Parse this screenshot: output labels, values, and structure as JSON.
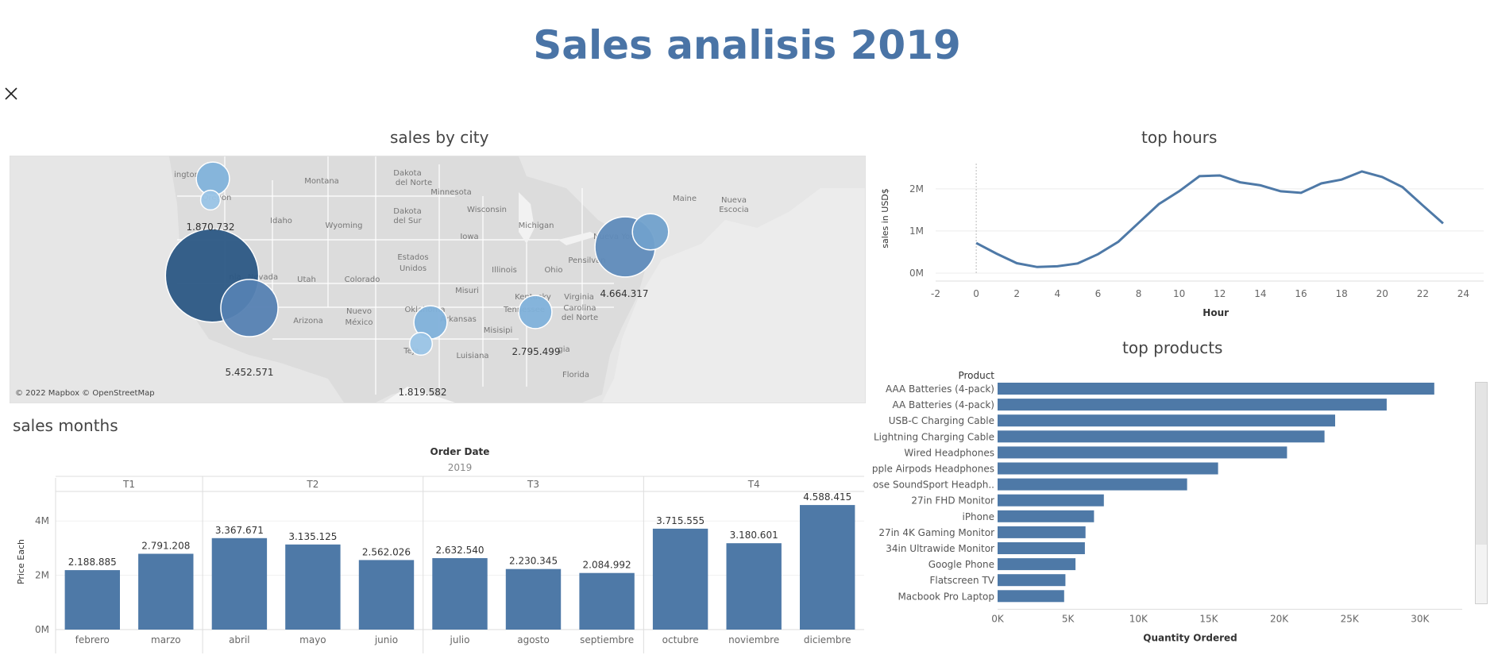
{
  "dashboard": {
    "title": "Sales analisis 2019",
    "close_icon": "close-icon",
    "colors": {
      "title": "#4a74a6",
      "bar": "#4e79a7",
      "line": "#4e79a7"
    }
  },
  "city_panel": {
    "title": "sales by city",
    "attribution": "© 2022 Mapbox © OpenStreetMap",
    "map_labels": [
      "ington",
      "Montana",
      "Dakota",
      "del Norte",
      "Minnesota",
      "Maine",
      "Nueva",
      "Escocia",
      "Idaho",
      "Wyoming",
      "Dakota",
      "del Sur",
      "Wisconsin",
      "Michigan",
      "Nueva York",
      "Iowa",
      "Estados",
      "Unidos",
      "Pensilvan",
      "Nevada",
      "Utah",
      "Colorado",
      "Illinois",
      "Ohio",
      "nia",
      "Misuri",
      "Kentucky",
      "Virginia",
      "Arizona",
      "Nuevo",
      "México",
      "Oklahoma",
      "Tennessee",
      "Carolina",
      "del Norte",
      "Arkansas",
      "Misisipi",
      "Teja",
      "Luisiana",
      "gia",
      "Florida",
      "Oregon"
    ],
    "city_labels": [
      "1.870.732",
      "4.664.317",
      "5.452.571",
      "2.795.499",
      "1.819.582"
    ],
    "cities": [
      {
        "id": "seattle",
        "size": 1.0
      },
      {
        "id": "portland",
        "size": 0.55
      },
      {
        "id": "sf",
        "size": 3.0
      },
      {
        "id": "la",
        "size": 1.8
      },
      {
        "id": "dallas",
        "size": 1.0
      },
      {
        "id": "austin",
        "size": 0.65
      },
      {
        "id": "atlanta",
        "size": 1.0
      },
      {
        "id": "nyc",
        "size": 1.9
      },
      {
        "id": "boston",
        "size": 1.1
      }
    ]
  },
  "hours_panel": {
    "title": "top hours"
  },
  "products_panel": {
    "title": "top products"
  },
  "months_panel": {
    "title": "sales months"
  },
  "chart_data": [
    {
      "type": "line",
      "title": "top hours",
      "xlabel": "Hour",
      "ylabel": "sales in USD$",
      "x": [
        0,
        1,
        2,
        3,
        4,
        5,
        6,
        7,
        8,
        9,
        10,
        11,
        12,
        13,
        14,
        15,
        16,
        17,
        18,
        19,
        20,
        21,
        22,
        23
      ],
      "y": [
        713721,
        460866,
        234851,
        145757,
        162661,
        230679,
        448113,
        744854,
        1192348,
        1639030,
        1944287,
        2300610,
        2316821,
        2155390,
        2083672,
        1941549,
        1904601,
        2129362,
        2219348,
        2412939,
        2281716,
        2042001,
        1607549,
        1179305
      ],
      "xlim": [
        -2,
        25
      ],
      "ylim": [
        0,
        2600000
      ],
      "xticks": [
        "-2",
        "0",
        "2",
        "4",
        "6",
        "8",
        "10",
        "12",
        "14",
        "16",
        "18",
        "20",
        "22",
        "24"
      ],
      "yticks": [
        "0M",
        "1M",
        "2M"
      ],
      "grid": true
    },
    {
      "type": "bar",
      "orientation": "horizontal",
      "title": "top products",
      "category_header": "Product",
      "xlabel": "Quantity Ordered",
      "categories": [
        "AAA Batteries (4-pack)",
        "AA Batteries (4-pack)",
        "USB-C Charging Cable",
        "Lightning Charging Cable",
        "Wired Headphones",
        "Apple Airpods Headphones",
        "Bose SoundSport Headph..",
        "27in FHD Monitor",
        "iPhone",
        "27in 4K Gaming Monitor",
        "34in Ultrawide Monitor",
        "Google Phone",
        "Flatscreen TV",
        "Macbook Pro Laptop"
      ],
      "values": [
        31017,
        27635,
        23975,
        23217,
        20557,
        15661,
        13457,
        7550,
        6849,
        6244,
        6199,
        5532,
        4819,
        4728
      ],
      "xlim": [
        0,
        33000
      ],
      "xticks": [
        "0K",
        "5K",
        "10K",
        "15K",
        "20K",
        "25K",
        "30K"
      ]
    },
    {
      "type": "bar",
      "title": "sales months",
      "header": "Order Date",
      "year": "2019",
      "ylabel": "Price Each",
      "quarters": [
        "T1",
        "T2",
        "T3",
        "T4"
      ],
      "categories": [
        "febrero",
        "marzo",
        "abril",
        "mayo",
        "junio",
        "julio",
        "agosto",
        "septiembre",
        "octubre",
        "noviembre",
        "diciembre"
      ],
      "quarter_of": [
        0,
        0,
        1,
        1,
        1,
        2,
        2,
        2,
        3,
        3,
        3
      ],
      "values": [
        2188885,
        2791208,
        3367671,
        3135125,
        2562026,
        2632540,
        2230345,
        2084992,
        3715555,
        3180601,
        4588415
      ],
      "value_labels": [
        "2.188.885",
        "2.791.208",
        "3.367.671",
        "3.135.125",
        "2.562.026",
        "2.632.540",
        "2.230.345",
        "2.084.992",
        "3.715.555",
        "3.180.601",
        "4.588.415"
      ],
      "ylim": [
        0,
        5000000
      ],
      "yticks": [
        "0M",
        "2M",
        "4M"
      ]
    }
  ]
}
